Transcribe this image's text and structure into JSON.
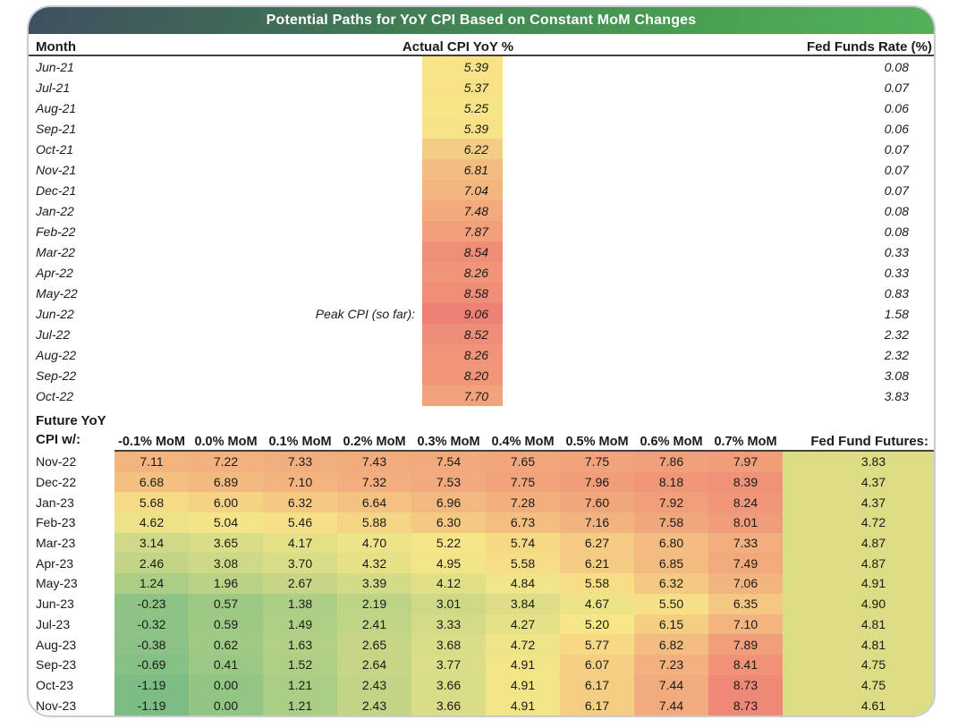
{
  "chart_data": {
    "type": "table",
    "title": "Potential Paths for YoY CPI Based on Constant MoM Changes",
    "actual": {
      "columns": [
        "Month",
        "Actual CPI YoY %",
        "Fed Funds Rate (%)"
      ],
      "peak_annotation": "Peak CPI (so far):",
      "peak_month": "Jun-22",
      "rows": [
        {
          "month": "Jun-21",
          "cpi": "5.39",
          "fed": "0.08"
        },
        {
          "month": "Jul-21",
          "cpi": "5.37",
          "fed": "0.07"
        },
        {
          "month": "Aug-21",
          "cpi": "5.25",
          "fed": "0.06"
        },
        {
          "month": "Sep-21",
          "cpi": "5.39",
          "fed": "0.06"
        },
        {
          "month": "Oct-21",
          "cpi": "6.22",
          "fed": "0.07"
        },
        {
          "month": "Nov-21",
          "cpi": "6.81",
          "fed": "0.07"
        },
        {
          "month": "Dec-21",
          "cpi": "7.04",
          "fed": "0.07"
        },
        {
          "month": "Jan-22",
          "cpi": "7.48",
          "fed": "0.08"
        },
        {
          "month": "Feb-22",
          "cpi": "7.87",
          "fed": "0.08"
        },
        {
          "month": "Mar-22",
          "cpi": "8.54",
          "fed": "0.33"
        },
        {
          "month": "Apr-22",
          "cpi": "8.26",
          "fed": "0.33"
        },
        {
          "month": "May-22",
          "cpi": "8.58",
          "fed": "0.83"
        },
        {
          "month": "Jun-22",
          "cpi": "9.06",
          "fed": "1.58"
        },
        {
          "month": "Jul-22",
          "cpi": "8.52",
          "fed": "2.32"
        },
        {
          "month": "Aug-22",
          "cpi": "8.26",
          "fed": "2.32"
        },
        {
          "month": "Sep-22",
          "cpi": "8.20",
          "fed": "3.08"
        },
        {
          "month": "Oct-22",
          "cpi": "7.70",
          "fed": "3.83"
        }
      ]
    },
    "projection": {
      "row_header_lines": [
        "Future YoY",
        "CPI w/:"
      ],
      "mom_columns": [
        "-0.1% MoM",
        "0.0% MoM",
        "0.1% MoM",
        "0.2% MoM",
        "0.3% MoM",
        "0.4% MoM",
        "0.5% MoM",
        "0.6% MoM",
        "0.7% MoM"
      ],
      "futures_column": "Fed Fund Futures:",
      "rows": [
        {
          "month": "Nov-22",
          "values": [
            "7.11",
            "7.22",
            "7.33",
            "7.43",
            "7.54",
            "7.65",
            "7.75",
            "7.86",
            "7.97"
          ],
          "futures": "3.83"
        },
        {
          "month": "Dec-22",
          "values": [
            "6.68",
            "6.89",
            "7.10",
            "7.32",
            "7.53",
            "7.75",
            "7.96",
            "8.18",
            "8.39"
          ],
          "futures": "4.37"
        },
        {
          "month": "Jan-23",
          "values": [
            "5.68",
            "6.00",
            "6.32",
            "6.64",
            "6.96",
            "7.28",
            "7.60",
            "7.92",
            "8.24"
          ],
          "futures": "4.37"
        },
        {
          "month": "Feb-23",
          "values": [
            "4.62",
            "5.04",
            "5.46",
            "5.88",
            "6.30",
            "6.73",
            "7.16",
            "7.58",
            "8.01"
          ],
          "futures": "4.72"
        },
        {
          "month": "Mar-23",
          "values": [
            "3.14",
            "3.65",
            "4.17",
            "4.70",
            "5.22",
            "5.74",
            "6.27",
            "6.80",
            "7.33"
          ],
          "futures": "4.87"
        },
        {
          "month": "Apr-23",
          "values": [
            "2.46",
            "3.08",
            "3.70",
            "4.32",
            "4.95",
            "5.58",
            "6.21",
            "6.85",
            "7.49"
          ],
          "futures": "4.87"
        },
        {
          "month": "May-23",
          "values": [
            "1.24",
            "1.96",
            "2.67",
            "3.39",
            "4.12",
            "4.84",
            "5.58",
            "6.32",
            "7.06"
          ],
          "futures": "4.91"
        },
        {
          "month": "Jun-23",
          "values": [
            "-0.23",
            "0.57",
            "1.38",
            "2.19",
            "3.01",
            "3.84",
            "4.67",
            "5.50",
            "6.35"
          ],
          "futures": "4.90"
        },
        {
          "month": "Jul-23",
          "values": [
            "-0.32",
            "0.59",
            "1.49",
            "2.41",
            "3.33",
            "4.27",
            "5.20",
            "6.15",
            "7.10"
          ],
          "futures": "4.81"
        },
        {
          "month": "Aug-23",
          "values": [
            "-0.38",
            "0.62",
            "1.63",
            "2.65",
            "3.68",
            "4.72",
            "5.77",
            "6.82",
            "7.89"
          ],
          "futures": "4.81"
        },
        {
          "month": "Sep-23",
          "values": [
            "-0.69",
            "0.41",
            "1.52",
            "2.64",
            "3.77",
            "4.91",
            "6.07",
            "7.23",
            "8.41"
          ],
          "futures": "4.75"
        },
        {
          "month": "Oct-23",
          "values": [
            "-1.19",
            "0.00",
            "1.21",
            "2.43",
            "3.66",
            "4.91",
            "6.17",
            "7.44",
            "8.73"
          ],
          "futures": "4.75"
        },
        {
          "month": "Nov-23",
          "values": [
            "-1.19",
            "0.00",
            "1.21",
            "2.43",
            "3.66",
            "4.91",
            "6.17",
            "7.44",
            "8.73"
          ],
          "futures": "4.61"
        }
      ]
    },
    "color_scale": {
      "min_value": -1.19,
      "min_color": "#7cbd84",
      "mid_value": 5.2,
      "mid_color": "#f7e788",
      "max_value": 9.06,
      "max_color": "#ee8075",
      "futures_fill": "#dcdd84",
      "title_gradient_left": "#40505f",
      "title_gradient_right": "#54b05b"
    }
  }
}
